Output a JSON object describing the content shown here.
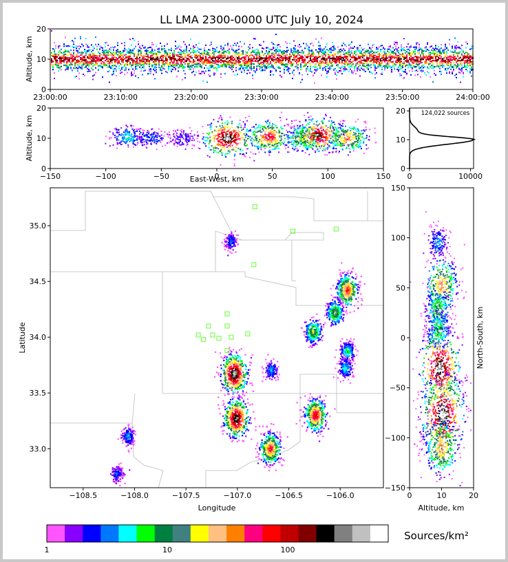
{
  "title": "LL LMA 2300-0000 UTC July 10, 2024",
  "colors": {
    "stations": "#66ff33",
    "borders": "#bbbbbb",
    "axis": "#000000"
  },
  "chart_data": [
    {
      "type": "heatmap",
      "panel": "altitude-time",
      "ylabel": "Altitude, km",
      "ylim": [
        0,
        20
      ],
      "yticks": [
        "0",
        "10",
        "20"
      ],
      "xticks": [
        "23:00:00",
        "23:10:00",
        "23:20:00",
        "23:30:00",
        "23:40:00",
        "23:50:00",
        "24:00:00"
      ],
      "band_center_km": 10,
      "band_spread_km": 3
    },
    {
      "type": "heatmap",
      "panel": "east-west-altitude",
      "xlabel": "East-West, km",
      "ylabel": "Altitude, km",
      "xlim": [
        -150,
        150
      ],
      "ylim": [
        0,
        20
      ],
      "xticks": [
        "−150",
        "−100",
        "−50",
        "0",
        "50",
        "100",
        "150"
      ],
      "yticks": [
        "0",
        "10",
        "20"
      ],
      "clusters": [
        {
          "x": -80,
          "z": 10.5,
          "intensity": 0.25
        },
        {
          "x": -60,
          "z": 10,
          "intensity": 0.15
        },
        {
          "x": -30,
          "z": 10,
          "intensity": 0.1
        },
        {
          "x": 10,
          "z": 10,
          "intensity": 0.95
        },
        {
          "x": 47,
          "z": 10.5,
          "intensity": 0.7
        },
        {
          "x": 78,
          "z": 10,
          "intensity": 0.5
        },
        {
          "x": 92,
          "z": 11,
          "intensity": 0.85
        },
        {
          "x": 118,
          "z": 10,
          "intensity": 0.6
        }
      ]
    },
    {
      "type": "line",
      "panel": "altitude-histogram",
      "annotation": "124,022 sources",
      "xlim": [
        0,
        10500
      ],
      "ylim": [
        0,
        21
      ],
      "xticks": [
        "0",
        "10000"
      ],
      "yticks": [
        "0",
        "10",
        "20"
      ],
      "peak_altitude_km": 10,
      "peak_count": 10400
    },
    {
      "type": "heatmap",
      "panel": "plan-view",
      "xlabel": "Longitude",
      "ylabel": "Latitude",
      "xlim": [
        -108.82,
        -105.58
      ],
      "ylim": [
        32.65,
        35.34
      ],
      "xticks": [
        "−108.5",
        "−108.0",
        "−107.5",
        "−107.0",
        "−106.5",
        "−106.0"
      ],
      "yticks": [
        "33.0",
        "33.5",
        "34.0",
        "34.5",
        "35.0"
      ],
      "stations": [
        {
          "lon": -106.83,
          "lat": 35.17
        },
        {
          "lon": -106.46,
          "lat": 34.95
        },
        {
          "lon": -106.04,
          "lat": 34.97
        },
        {
          "lon": -106.84,
          "lat": 34.65
        },
        {
          "lon": -107.1,
          "lat": 34.21
        },
        {
          "lon": -107.28,
          "lat": 34.1
        },
        {
          "lon": -107.1,
          "lat": 34.1
        },
        {
          "lon": -107.38,
          "lat": 34.02
        },
        {
          "lon": -107.24,
          "lat": 34.02
        },
        {
          "lon": -106.9,
          "lat": 34.03
        },
        {
          "lon": -107.33,
          "lat": 33.98
        },
        {
          "lon": -107.18,
          "lat": 33.99
        },
        {
          "lon": -107.06,
          "lat": 34.0
        },
        {
          "lon": -107.1,
          "lat": 33.88
        }
      ],
      "storms": [
        {
          "lon": -107.03,
          "lat": 33.67,
          "intensity": 1.0
        },
        {
          "lon": -107.01,
          "lat": 33.27,
          "intensity": 0.95
        },
        {
          "lon": -106.68,
          "lat": 33.0,
          "intensity": 0.7
        },
        {
          "lon": -106.24,
          "lat": 33.3,
          "intensity": 0.75
        },
        {
          "lon": -105.93,
          "lat": 34.42,
          "intensity": 0.7
        },
        {
          "lon": -106.05,
          "lat": 34.22,
          "intensity": 0.45
        },
        {
          "lon": -106.26,
          "lat": 34.05,
          "intensity": 0.45
        },
        {
          "lon": -107.06,
          "lat": 34.86,
          "intensity": 0.15
        },
        {
          "lon": -108.06,
          "lat": 33.11,
          "intensity": 0.2
        },
        {
          "lon": -108.17,
          "lat": 32.77,
          "intensity": 0.15
        },
        {
          "lon": -106.67,
          "lat": 33.7,
          "intensity": 0.2
        },
        {
          "lon": -105.93,
          "lat": 33.87,
          "intensity": 0.3
        },
        {
          "lon": -105.95,
          "lat": 33.72,
          "intensity": 0.25
        }
      ]
    },
    {
      "type": "heatmap",
      "panel": "altitude-north-south",
      "xlabel": "Altitude, km",
      "ylabel": "North-South, km",
      "xlim": [
        0,
        20
      ],
      "ylim": [
        -150,
        150
      ],
      "xticks": [
        "0",
        "10",
        "20"
      ],
      "yticks": [
        "−150",
        "−100",
        "−50",
        "0",
        "50",
        "100",
        "150"
      ],
      "clusters": [
        {
          "y": 95,
          "z": 9,
          "intensity": 0.2
        },
        {
          "y": 52,
          "z": 10,
          "intensity": 0.6
        },
        {
          "y": 27,
          "z": 9,
          "intensity": 0.4
        },
        {
          "y": 7,
          "z": 9,
          "intensity": 0.35
        },
        {
          "y": -30,
          "z": 9.5,
          "intensity": 0.95
        },
        {
          "y": -78,
          "z": 10.5,
          "intensity": 1.0
        },
        {
          "y": -110,
          "z": 10,
          "intensity": 0.6
        }
      ]
    }
  ],
  "colorbar": {
    "label": "Sources/km²",
    "ticks": [
      "1",
      "10",
      "100"
    ],
    "scale": "log",
    "colors": [
      "#ff55ff",
      "#8800ff",
      "#0000ff",
      "#0077ff",
      "#00ffff",
      "#00ff00",
      "#008040",
      "#408080",
      "#ffff00",
      "#ffc080",
      "#ff8000",
      "#ff0080",
      "#ff0000",
      "#c00000",
      "#800000",
      "#000000",
      "#808080",
      "#c0c0c0",
      "#ffffff"
    ]
  }
}
